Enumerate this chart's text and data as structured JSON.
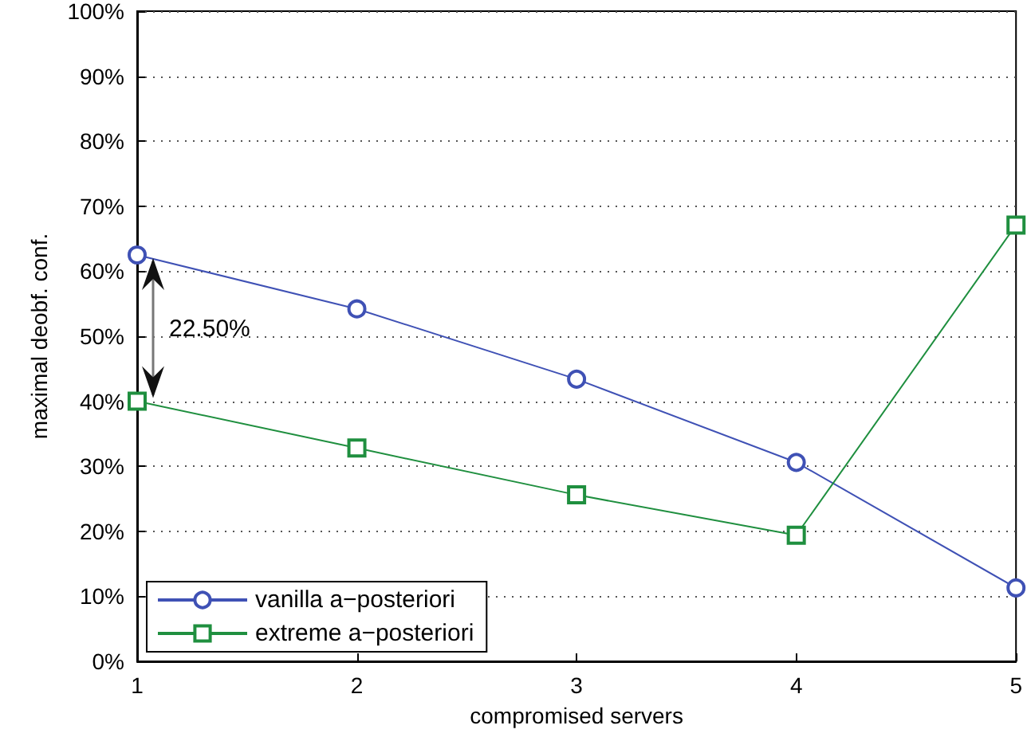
{
  "chart_data": {
    "type": "line",
    "xlabel": "compromised servers",
    "ylabel": "maximal deobf. conf.",
    "x": [
      1,
      2,
      3,
      4,
      5
    ],
    "series": [
      {
        "name": "vanilla a−posteriori",
        "color": "#3f51b5",
        "marker": "circle",
        "values": [
          62.5,
          54.2,
          43.4,
          30.6,
          11.3
        ]
      },
      {
        "name": "extreme a−posteriori",
        "color": "#1f8f3f",
        "marker": "square",
        "values": [
          40,
          32.8,
          25.6,
          19.4,
          67.1
        ]
      }
    ],
    "xlim": [
      1,
      5
    ],
    "xticks": [
      1,
      2,
      3,
      4,
      5
    ],
    "ylim": [
      0,
      100
    ],
    "yticks": [
      {
        "value": 0,
        "label": "0%"
      },
      {
        "value": 10,
        "label": "10%"
      },
      {
        "value": 20,
        "label": "20%"
      },
      {
        "value": 30,
        "label": "30%"
      },
      {
        "value": 40,
        "label": "40%"
      },
      {
        "value": 50,
        "label": "50%"
      },
      {
        "value": 60,
        "label": "60%"
      },
      {
        "value": 70,
        "label": "70%"
      },
      {
        "value": 80,
        "label": "80%"
      },
      {
        "value": 90,
        "label": "90%"
      },
      {
        "value": 100,
        "label": "100%"
      }
    ],
    "grid": "y",
    "legend": "bottom left",
    "line_style": "solid",
    "annotations": [
      "22.50%"
    ]
  }
}
